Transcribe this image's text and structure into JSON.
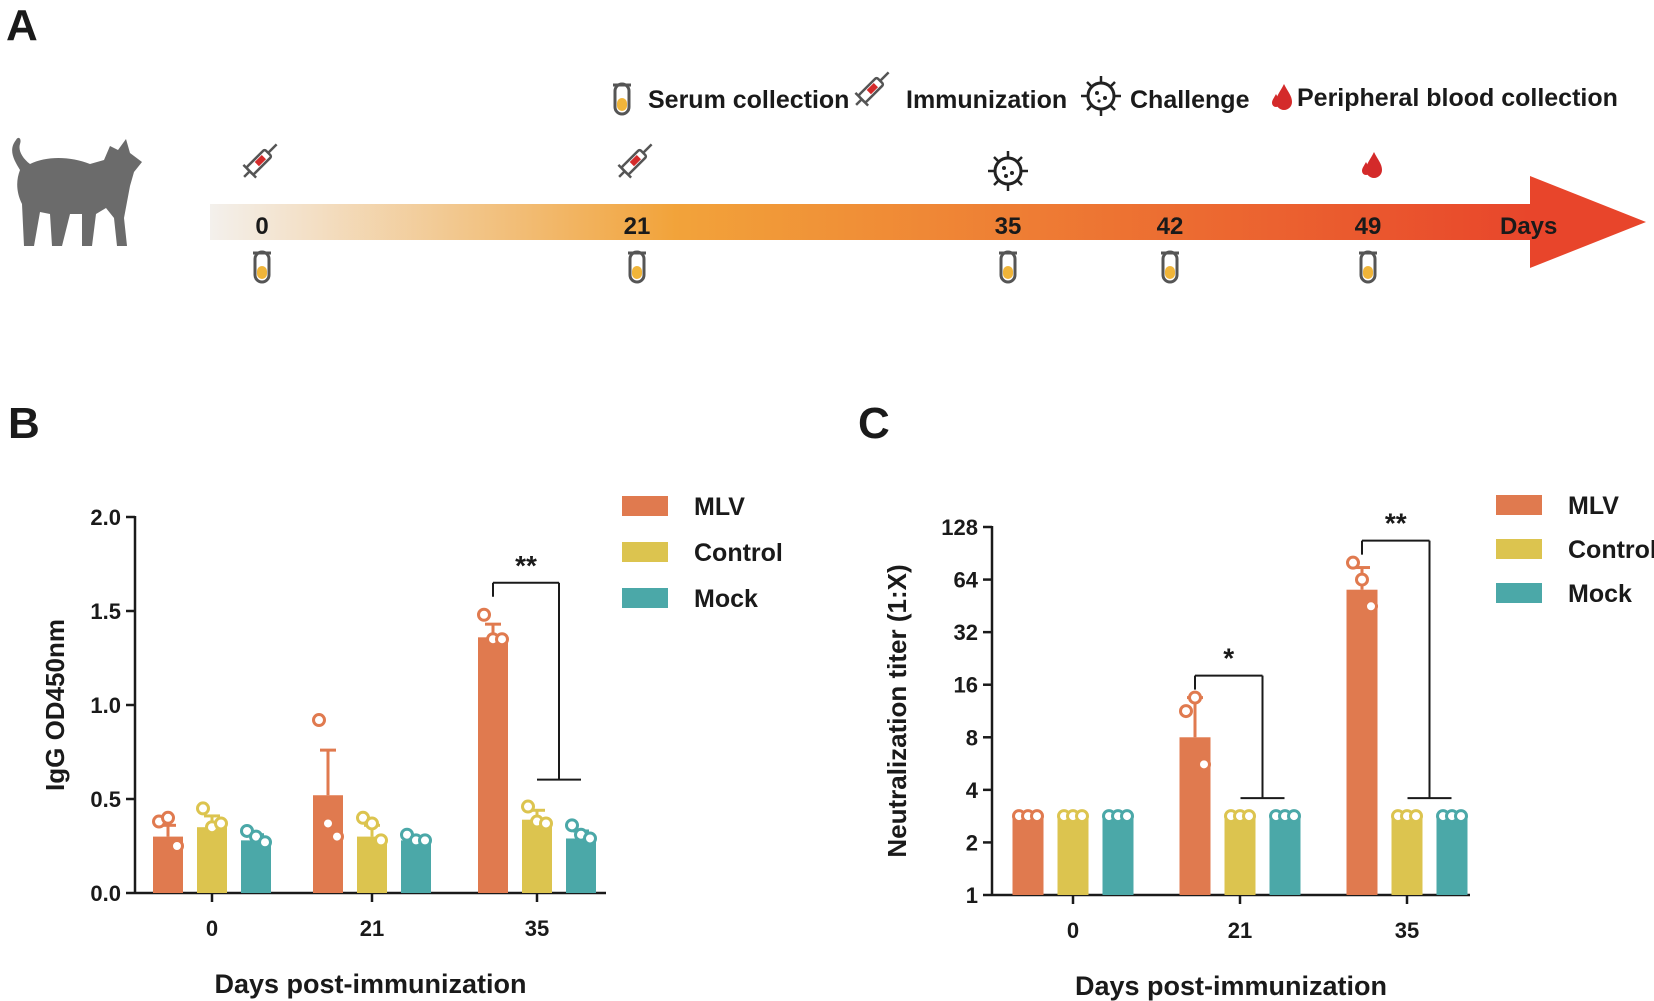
{
  "colors": {
    "mlv": "#e07a4f",
    "control": "#dcc44f",
    "mock": "#4ba8a8",
    "arrow_start": "#f3f0ec",
    "arrow_mid": "#f2a33a",
    "arrow_end": "#e8452b",
    "cat": "#6b6b6b",
    "blood": "#d42a2a",
    "tube_fill": "#f0b53a"
  },
  "panel_a": {
    "label": "A",
    "legend": [
      {
        "icon": "serum-tube-icon",
        "text": "Serum collection"
      },
      {
        "icon": "syringe-icon",
        "text": "Immunization"
      },
      {
        "icon": "virus-icon",
        "text": "Challenge"
      },
      {
        "icon": "blood-drop-icon",
        "text": "Peripheral blood collection"
      }
    ],
    "timeline_unit": "Days",
    "timepoints": [
      {
        "day": "0",
        "events": [
          "immunization",
          "serum"
        ]
      },
      {
        "day": "21",
        "events": [
          "immunization",
          "serum"
        ]
      },
      {
        "day": "35",
        "events": [
          "challenge",
          "serum"
        ]
      },
      {
        "day": "42",
        "events": [
          "serum"
        ]
      },
      {
        "day": "49",
        "events": [
          "blood",
          "serum"
        ]
      }
    ]
  },
  "chart_data": [
    {
      "panel": "B",
      "type": "bar",
      "ylabel": "IgG OD450nm",
      "xlabel": "Days post-immunization",
      "categories": [
        "0",
        "21",
        "35"
      ],
      "ylim": [
        0,
        2.0
      ],
      "yticks": [
        "0.0",
        "0.5",
        "1.0",
        "1.5",
        "2.0"
      ],
      "ytick_values": [
        0,
        0.5,
        1.0,
        1.5,
        2.0
      ],
      "series": [
        {
          "name": "MLV",
          "values": [
            0.3,
            0.52,
            1.36
          ],
          "errors": [
            0.06,
            0.24,
            0.07
          ],
          "points": [
            [
              0.38,
              0.4,
              0.25
            ],
            [
              0.92,
              0.37,
              0.3
            ],
            [
              1.48,
              1.35,
              1.35
            ]
          ]
        },
        {
          "name": "Control",
          "values": [
            0.35,
            0.3,
            0.39
          ],
          "errors": [
            0.06,
            0.06,
            0.05
          ],
          "points": [
            [
              0.45,
              0.35,
              0.37
            ],
            [
              0.4,
              0.37,
              0.28
            ],
            [
              0.46,
              0.38,
              0.37
            ]
          ]
        },
        {
          "name": "Mock",
          "values": [
            0.28,
            0.28,
            0.29
          ],
          "errors": [
            0.03,
            0.02,
            0.04
          ],
          "points": [
            [
              0.33,
              0.3,
              0.27
            ],
            [
              0.31,
              0.28,
              0.28
            ],
            [
              0.36,
              0.31,
              0.29
            ]
          ]
        }
      ],
      "significance": [
        {
          "category": "35",
          "label": "**"
        }
      ]
    },
    {
      "panel": "C",
      "type": "bar",
      "scale": "log2",
      "ylabel": "Neutralization titer (1:X)",
      "xlabel": "Days post-immunization",
      "categories": [
        "0",
        "21",
        "35"
      ],
      "ylim": [
        1,
        128
      ],
      "yticks": [
        "1",
        "2",
        "4",
        "8",
        "16",
        "32",
        "64",
        "128"
      ],
      "ytick_values": [
        1,
        2,
        4,
        8,
        16,
        32,
        64,
        128
      ],
      "series": [
        {
          "name": "MLV",
          "values": [
            2.83,
            8,
            56
          ],
          "errors_upper": [
            2.83,
            13.5,
            75
          ],
          "points": [
            [
              2.83,
              2.83,
              2.83
            ],
            [
              11.3,
              13.5,
              5.6
            ],
            [
              80,
              64,
              45
            ]
          ]
        },
        {
          "name": "Control",
          "values": [
            2.83,
            2.83,
            2.83
          ],
          "errors_upper": [
            2.83,
            2.83,
            2.83
          ],
          "points": [
            [
              2.83,
              2.83,
              2.83
            ],
            [
              2.83,
              2.83,
              2.83
            ],
            [
              2.83,
              2.83,
              2.83
            ]
          ]
        },
        {
          "name": "Mock",
          "values": [
            2.83,
            2.83,
            2.83
          ],
          "errors_upper": [
            2.83,
            2.83,
            2.83
          ],
          "points": [
            [
              2.83,
              2.83,
              2.83
            ],
            [
              2.83,
              2.83,
              2.83
            ],
            [
              2.83,
              2.83,
              2.83
            ]
          ]
        }
      ],
      "significance": [
        {
          "category": "21",
          "label": "*"
        },
        {
          "category": "35",
          "label": "**"
        }
      ]
    }
  ]
}
